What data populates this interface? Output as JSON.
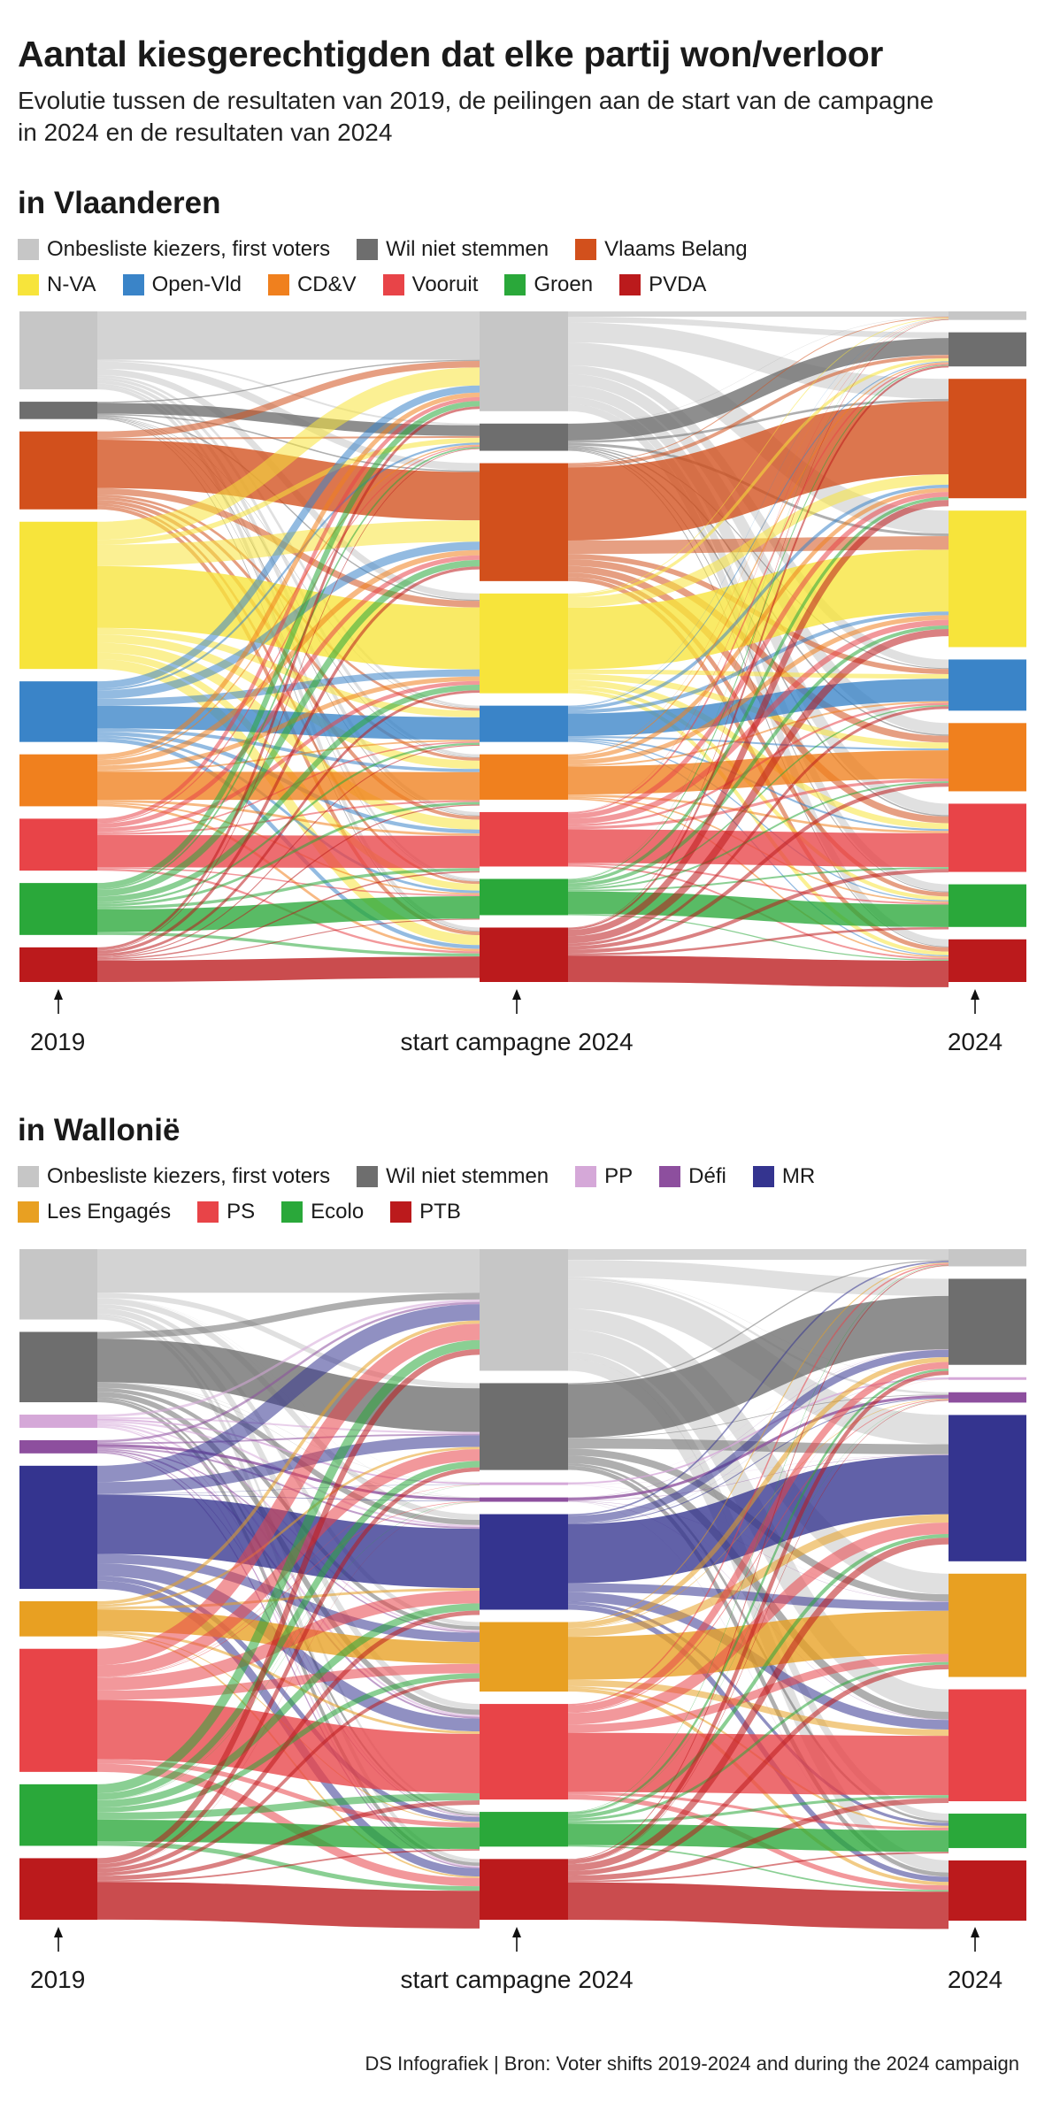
{
  "title": "Aantal kiesgerechtigden dat elke partij won/verloor",
  "subtitle": "Evolutie tussen de resultaten van 2019, de peilingen aan de start van de campagne in 2024 en de resultaten van 2024",
  "footer": "DS Infografiek | Bron: Voter shifts 2019-2024 and during the 2024 campaign",
  "chart_data": [
    {
      "type": "sankey",
      "title": "in Vlaanderen",
      "stages": [
        "2019",
        "start campagne 2024",
        "2024"
      ],
      "parties": [
        {
          "name": "Onbesliste kiezers, first voters",
          "color": "#c6c6c6",
          "values": [
            9,
            11,
            1
          ]
        },
        {
          "name": "Wil niet stemmen",
          "color": "#6e6e6e",
          "values": [
            2,
            3,
            4
          ]
        },
        {
          "name": "Vlaams Belang",
          "color": "#d2501c",
          "values": [
            9,
            13,
            14
          ]
        },
        {
          "name": "N-VA",
          "color": "#f7e43b",
          "values": [
            17,
            11,
            16
          ]
        },
        {
          "name": "Open-Vld",
          "color": "#3a84c8",
          "values": [
            7,
            4,
            6
          ]
        },
        {
          "name": "CD&V",
          "color": "#f0801e",
          "values": [
            6,
            5,
            8
          ]
        },
        {
          "name": "Vooruit",
          "color": "#e84448",
          "values": [
            6,
            6,
            8
          ]
        },
        {
          "name": "Groen",
          "color": "#2aa83a",
          "values": [
            6,
            4,
            5
          ]
        },
        {
          "name": "PVDA",
          "color": "#bb1a1c",
          "values": [
            4,
            6,
            5
          ]
        }
      ],
      "legend_rows": [
        [
          "Onbesliste kiezers, first voters",
          "Wil niet stemmen",
          "Vlaams Belang"
        ],
        [
          "N-VA",
          "Open-Vld",
          "CD&V",
          "Vooruit",
          "Groen",
          "PVDA"
        ]
      ]
    },
    {
      "type": "sankey",
      "title": "in Wallonië",
      "stages": [
        "2019",
        "start campagne 2024",
        "2024"
      ],
      "parties": [
        {
          "name": "Onbesliste kiezers, first voters",
          "color": "#c6c6c6",
          "values": [
            8,
            14,
            2
          ]
        },
        {
          "name": "Wil niet stemmen",
          "color": "#6e6e6e",
          "values": [
            8,
            10,
            10
          ]
        },
        {
          "name": "PP",
          "color": "#d5a8d8",
          "values": [
            1.5,
            0.3,
            0.2
          ]
        },
        {
          "name": "Défi",
          "color": "#8d4f9e",
          "values": [
            1.5,
            0.5,
            1.2
          ]
        },
        {
          "name": "MR",
          "color": "#34348f",
          "values": [
            14,
            11,
            17
          ]
        },
        {
          "name": "Les Engagés",
          "color": "#e8a022",
          "values": [
            4,
            8,
            12
          ]
        },
        {
          "name": "PS",
          "color": "#e84448",
          "values": [
            14,
            11,
            13
          ]
        },
        {
          "name": "Ecolo",
          "color": "#2aa83a",
          "values": [
            7,
            4,
            4
          ]
        },
        {
          "name": "PTB",
          "color": "#bb1a1c",
          "values": [
            7,
            7,
            7
          ]
        }
      ],
      "legend_rows": [
        [
          "Onbesliste kiezers, first voters",
          "Wil niet stemmen",
          "PP",
          "Défi",
          "MR"
        ],
        [
          "Les Engagés",
          "PS",
          "Ecolo",
          "PTB"
        ]
      ]
    }
  ]
}
